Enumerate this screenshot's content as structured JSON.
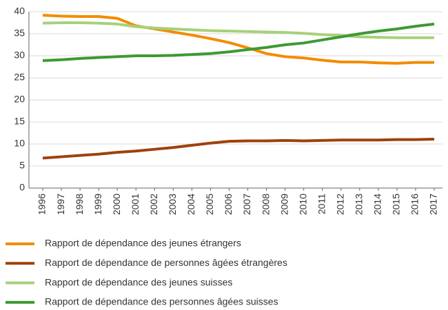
{
  "chart_data": {
    "type": "line",
    "categories": [
      "1996",
      "1997",
      "1998",
      "1999",
      "2000",
      "2001",
      "2002",
      "2003",
      "2004",
      "2005",
      "2006",
      "2007",
      "2008",
      "2009",
      "2010",
      "2011",
      "2012",
      "2013",
      "2014",
      "2015",
      "2016",
      "2017"
    ],
    "series": [
      {
        "name": "Rapport de dépendance des jeunes étrangers",
        "color": "#f28c00",
        "values": [
          39.2,
          39.0,
          38.9,
          38.9,
          38.5,
          36.8,
          36.1,
          35.4,
          34.7,
          33.9,
          33.0,
          31.8,
          30.5,
          29.8,
          29.5,
          29.0,
          28.6,
          28.6,
          28.4,
          28.3,
          28.5,
          28.5
        ]
      },
      {
        "name": "Rapport de dépendance de personnes âgées étrangères",
        "color": "#a0400a",
        "values": [
          6.8,
          7.1,
          7.4,
          7.7,
          8.1,
          8.4,
          8.8,
          9.2,
          9.7,
          10.2,
          10.6,
          10.7,
          10.7,
          10.8,
          10.7,
          10.8,
          10.9,
          10.9,
          10.9,
          11.0,
          11.0,
          11.1
        ]
      },
      {
        "name": "Rapport de dépendance des jeunes suisses",
        "color": "#a6d17a",
        "values": [
          37.4,
          37.5,
          37.5,
          37.4,
          37.2,
          36.6,
          36.3,
          36.1,
          35.9,
          35.7,
          35.6,
          35.5,
          35.4,
          35.3,
          35.1,
          34.8,
          34.6,
          34.3,
          34.2,
          34.1,
          34.1,
          34.1
        ]
      },
      {
        "name": "Rapport de dépendance des personnes âgées suisses",
        "color": "#3c9a32",
        "values": [
          28.9,
          29.1,
          29.4,
          29.6,
          29.8,
          30.0,
          30.0,
          30.1,
          30.3,
          30.5,
          30.9,
          31.4,
          31.9,
          32.5,
          32.9,
          33.6,
          34.3,
          35.0,
          35.6,
          36.1,
          36.7,
          37.2
        ]
      }
    ],
    "ylim": [
      0,
      40
    ],
    "yticks": [
      0,
      5,
      10,
      15,
      20,
      25,
      30,
      35,
      40
    ],
    "grid": true,
    "legend": "bottom"
  }
}
